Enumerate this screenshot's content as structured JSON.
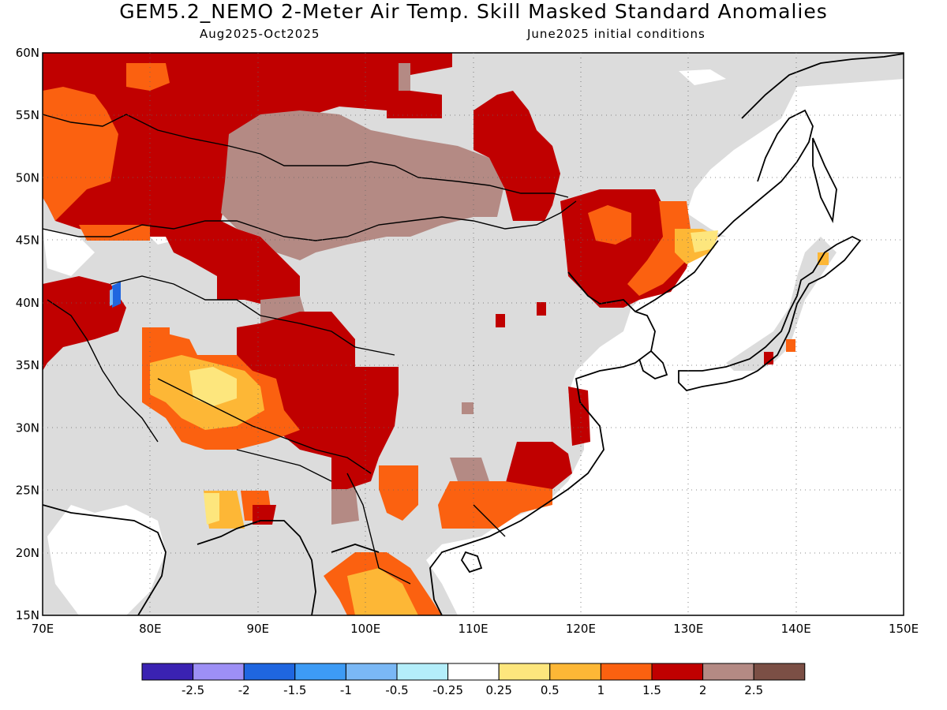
{
  "title": "GEM5.2_NEMO 2-Meter Air Temp. Skill Masked Standard Anomalies",
  "subtitle_left": "Aug2025-Oct2025",
  "subtitle_right": "June2025 initial conditions",
  "map": {
    "lon_range": [
      70,
      150
    ],
    "lat_range": [
      15,
      60
    ],
    "lon_ticks": [
      "70E",
      "80E",
      "90E",
      "100E",
      "110E",
      "120E",
      "130E",
      "140E",
      "150E"
    ],
    "lat_ticks": [
      "15N",
      "20N",
      "25N",
      "30N",
      "35N",
      "40N",
      "45N",
      "50N",
      "55N",
      "60N"
    ],
    "masked_color": "#dcdcdc"
  },
  "legend": {
    "colors": [
      "#3a22b2",
      "#9d8ff5",
      "#1f66e0",
      "#3d9bf5",
      "#7ab8f5",
      "#b4eefa",
      "#ffffff",
      "#fde67d",
      "#fdb736",
      "#fb6110",
      "#c00000",
      "#b48a84",
      "#7b4f45"
    ],
    "labels": [
      "-2.5",
      "-2",
      "-1.5",
      "-1",
      "-0.5",
      "-0.25",
      "0.25",
      "0.5",
      "1",
      "1.5",
      "2",
      "2.5"
    ]
  },
  "chart_data": {
    "type": "heatmap",
    "title": "GEM5.2_NEMO 2-Meter Air Temp. Skill Masked Standard Anomalies",
    "x_range": [
      70,
      150
    ],
    "y_range": [
      15,
      60
    ],
    "x_ticks": [
      "70E",
      "80E",
      "90E",
      "100E",
      "110E",
      "120E",
      "130E",
      "140E",
      "150E"
    ],
    "y_ticks": [
      "15N",
      "20N",
      "25N",
      "30N",
      "35N",
      "40N",
      "45N",
      "50N",
      "55N",
      "60N"
    ],
    "legend_levels": [
      -2.5,
      -2,
      -1.5,
      -1,
      -0.5,
      -0.25,
      0.25,
      0.5,
      1,
      1.5,
      2,
      2.5
    ],
    "regions": [
      {
        "area": "Kazakhstan / western Siberia",
        "anomaly": ">2"
      },
      {
        "area": "Mongolia",
        "anomaly": "2-2.5"
      },
      {
        "area": "Tibetan Plateau",
        "anomaly": "0.5-1.5"
      },
      {
        "area": "Southwest China",
        "anomaly": "1.5-2"
      },
      {
        "area": "Northeast China",
        "anomaly": "1.5-2"
      },
      {
        "area": "Indochina",
        "anomaly": "0.5-1.5"
      },
      {
        "area": "Eastern China / Japan",
        "anomaly": "masked"
      }
    ]
  }
}
